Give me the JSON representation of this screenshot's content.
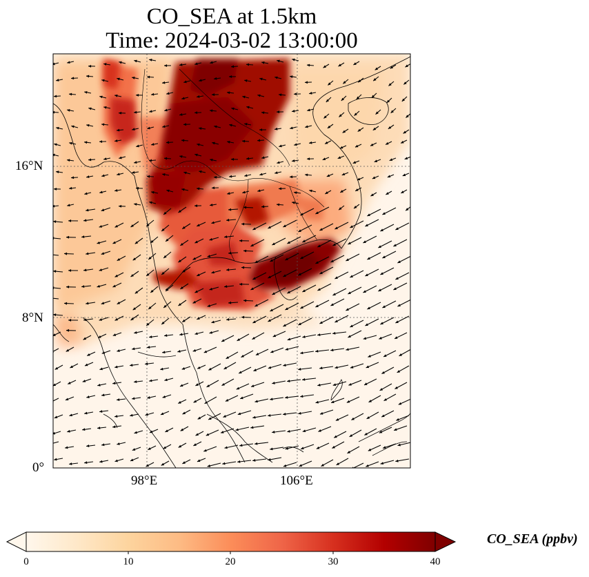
{
  "title": {
    "line1": "CO_SEA at 1.5km",
    "line2": "Time: 2024-03-02 13:00:00"
  },
  "map": {
    "lon_ticks": [
      "98°E",
      "106°E"
    ],
    "lat_ticks": [
      "16°N",
      "8°N",
      "0°"
    ],
    "lon_range": [
      93,
      112
    ],
    "lat_range": [
      0,
      22
    ],
    "gridlines": "dotted",
    "features": [
      "coastlines",
      "country borders",
      "wind vectors",
      "CO concentration field"
    ]
  },
  "colorbar": {
    "label": "CO_SEA (ppbv)",
    "ticks": [
      "0",
      "10",
      "20",
      "30",
      "40"
    ],
    "range": [
      0,
      40
    ],
    "extend": "both",
    "colormap": "OrRd",
    "colors": [
      "#fff7ec",
      "#fee8c8",
      "#fdd49e",
      "#fdbb84",
      "#fc8d59",
      "#ef6548",
      "#d7301f",
      "#b30000",
      "#7f0000"
    ]
  }
}
